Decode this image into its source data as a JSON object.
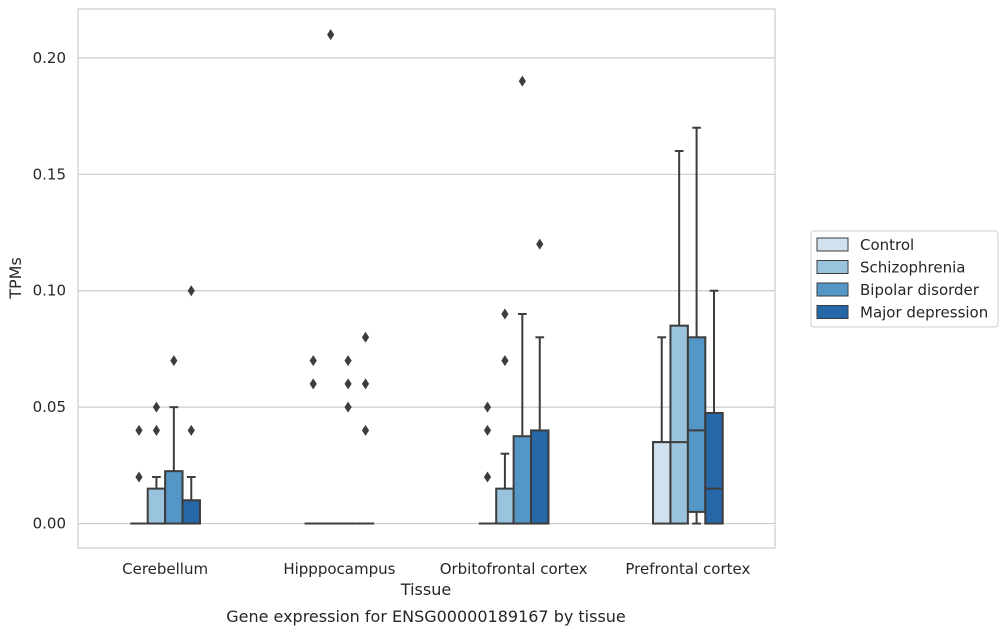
{
  "caption": "Gene expression for ENSG00000189167 by tissue",
  "chart_data": {
    "type": "boxplot",
    "title": "",
    "xlabel": "Tissue",
    "ylabel": "TPMs",
    "ylim": [
      -0.0105,
      0.221
    ],
    "yticks": [
      0.0,
      0.05,
      0.1,
      0.15,
      0.2
    ],
    "ytick_labels": [
      "0.00",
      "0.05",
      "0.10",
      "0.15",
      "0.20"
    ],
    "grid": "horizontal",
    "legend_position": "right",
    "categories": [
      "Cerebellum",
      "Hipppocampus",
      "Orbitofrontal cortex",
      "Prefrontal cortex"
    ],
    "series": [
      {
        "name": "Control",
        "color": "#d0e1f0",
        "boxes": [
          {
            "q1": 0,
            "median": 0,
            "q3": 0,
            "whisker_low": 0,
            "whisker_high": 0,
            "outliers": [
              0.02,
              0.04
            ]
          },
          {
            "q1": 0,
            "median": 0,
            "q3": 0,
            "whisker_low": 0,
            "whisker_high": 0,
            "outliers": [
              0.06,
              0.07
            ]
          },
          {
            "q1": 0,
            "median": 0,
            "q3": 0,
            "whisker_low": 0,
            "whisker_high": 0,
            "outliers": [
              0.02,
              0.04,
              0.05
            ]
          },
          {
            "q1": 0,
            "median": 0.035,
            "q3": 0.035,
            "whisker_low": 0,
            "whisker_high": 0.08,
            "outliers": []
          }
        ]
      },
      {
        "name": "Schizophrenia",
        "color": "#9ac3de",
        "boxes": [
          {
            "q1": 0,
            "median": 0,
            "q3": 0.015,
            "whisker_low": 0,
            "whisker_high": 0.02,
            "outliers": [
              0.04,
              0.05
            ]
          },
          {
            "q1": 0,
            "median": 0,
            "q3": 0,
            "whisker_low": 0,
            "whisker_high": 0,
            "outliers": [
              0.21
            ]
          },
          {
            "q1": 0,
            "median": 0,
            "q3": 0.015,
            "whisker_low": 0,
            "whisker_high": 0.03,
            "outliers": [
              0.07,
              0.09
            ]
          },
          {
            "q1": 0,
            "median": 0.035,
            "q3": 0.085,
            "whisker_low": 0,
            "whisker_high": 0.16,
            "outliers": []
          }
        ]
      },
      {
        "name": "Bipolar disorder",
        "color": "#5496c6",
        "boxes": [
          {
            "q1": 0,
            "median": 0,
            "q3": 0.0225,
            "whisker_low": 0,
            "whisker_high": 0.05,
            "outliers": [
              0.07
            ]
          },
          {
            "q1": 0,
            "median": 0,
            "q3": 0,
            "whisker_low": 0,
            "whisker_high": 0,
            "outliers": [
              0.05,
              0.06,
              0.07
            ]
          },
          {
            "q1": 0,
            "median": 0,
            "q3": 0.0375,
            "whisker_low": 0,
            "whisker_high": 0.09,
            "outliers": [
              0.19
            ]
          },
          {
            "q1": 0.005,
            "median": 0.04,
            "q3": 0.08,
            "whisker_low": 0,
            "whisker_high": 0.17,
            "outliers": []
          }
        ]
      },
      {
        "name": "Major depression",
        "color": "#2667a8",
        "boxes": [
          {
            "q1": 0,
            "median": 0,
            "q3": 0.01,
            "whisker_low": 0,
            "whisker_high": 0.02,
            "outliers": [
              0.04,
              0.1
            ]
          },
          {
            "q1": 0,
            "median": 0,
            "q3": 0,
            "whisker_low": 0,
            "whisker_high": 0,
            "outliers": [
              0.04,
              0.06,
              0.08
            ]
          },
          {
            "q1": 0,
            "median": 0,
            "q3": 0.04,
            "whisker_low": 0,
            "whisker_high": 0.08,
            "outliers": [
              0.12
            ]
          },
          {
            "q1": 0,
            "median": 0.015,
            "q3": 0.0475,
            "whisker_low": 0,
            "whisker_high": 0.1,
            "outliers": []
          }
        ]
      }
    ]
  }
}
